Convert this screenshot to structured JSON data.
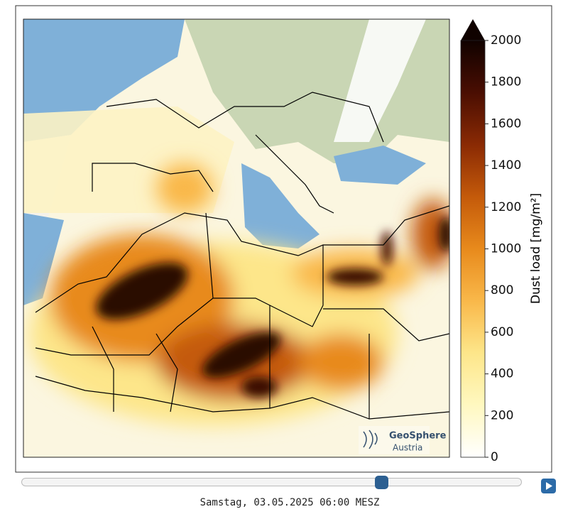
{
  "colorbar": {
    "label": "Dust load [mg/m²]",
    "lim": [
      0,
      2000
    ],
    "ticks": [
      0,
      200,
      400,
      600,
      800,
      1000,
      1200,
      1400,
      1600,
      1800,
      2000
    ],
    "colormap": [
      "#ffffff",
      "#fff8c0",
      "#fde68a",
      "#f9b84a",
      "#e88a1c",
      "#c45a0a",
      "#8a2a04",
      "#4a0e02",
      "#100200"
    ]
  },
  "logo": {
    "name": "GeoSphere",
    "sub": "Austria"
  },
  "timestamp": "Samstag, 03.05.2025 06:00 MESZ"
}
